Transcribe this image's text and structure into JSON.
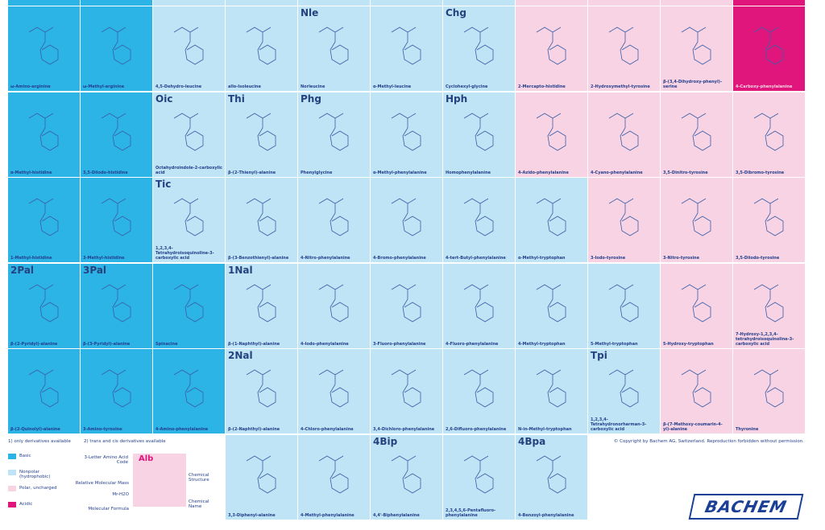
{
  "grid": [
    [
      {
        "name": "ω-Amino-arginine",
        "color": "#2cb4e6"
      },
      {
        "name": "ω-Methyl-arginine",
        "color": "#2cb4e6"
      },
      {
        "name": "4,5-Dehydro-leucine",
        "color": "#bfe4f5"
      },
      {
        "name": "allo-Isoleucine",
        "color": "#bfe4f5"
      },
      {
        "abbr": "Nle",
        "name": "Norleucine",
        "color": "#bfe4f5"
      },
      {
        "name": "α-Methyl-leucine",
        "color": "#bfe4f5"
      },
      {
        "abbr": "Chg",
        "name": "Cyclohexyl-glycine",
        "color": "#bfe4f5"
      },
      {
        "name": "2-Mercapto-histidine",
        "color": "#f8d3e3"
      },
      {
        "name": "2-Hydroxymethyl-tyrosine",
        "color": "#f8d3e3"
      },
      {
        "name": "β-(3,4-Dihydroxy-phenyl)-serine",
        "color": "#f8d3e3"
      },
      {
        "name": "4-Carboxy-phenylalanine",
        "color": "#e0167c"
      }
    ],
    [
      {
        "name": "α-Methyl-histidine",
        "color": "#2cb4e6"
      },
      {
        "name": "3,5-Diiodo-histidine",
        "color": "#2cb4e6"
      },
      {
        "abbr": "Oic",
        "name": "Octahydroindole-2-carboxylic acid",
        "color": "#bfe4f5"
      },
      {
        "abbr": "Thi",
        "name": "β-(2-Thienyl)-alanine",
        "color": "#bfe4f5"
      },
      {
        "abbr": "Phg",
        "name": "Phenylglycine",
        "color": "#bfe4f5"
      },
      {
        "name": "α-Methyl-phenylalanine",
        "color": "#bfe4f5"
      },
      {
        "abbr": "Hph",
        "name": "Homophenylalanine",
        "color": "#bfe4f5"
      },
      {
        "name": "4-Azido-phenylalanine",
        "color": "#f8d3e3"
      },
      {
        "name": "4-Cyano-phenylalanine",
        "color": "#f8d3e3"
      },
      {
        "name": "3,5-Dinitro-tyrosine",
        "color": "#f8d3e3"
      },
      {
        "name": "3,5-Dibromo-tyrosine",
        "color": "#f8d3e3"
      }
    ],
    [
      {
        "name": "1-Methyl-histidine",
        "color": "#2cb4e6"
      },
      {
        "name": "3-Methyl-histidine",
        "color": "#2cb4e6"
      },
      {
        "abbr": "Tic",
        "name": "1,2,3,4-Tetrahydroisoquinoline-3-carboxylic acid",
        "color": "#bfe4f5"
      },
      {
        "name": "β-(3-Benzothienyl)-alanine",
        "color": "#bfe4f5"
      },
      {
        "name": "4-Nitro-phenylalanine",
        "color": "#bfe4f5"
      },
      {
        "name": "4-Bromo-phenylalanine",
        "color": "#bfe4f5"
      },
      {
        "name": "4-tert-Butyl-phenylalanine",
        "color": "#bfe4f5"
      },
      {
        "name": "α-Methyl-tryptophan",
        "color": "#bfe4f5"
      },
      {
        "name": "3-Iodo-tyrosine",
        "color": "#f8d3e3"
      },
      {
        "name": "3-Nitro-tyrosine",
        "color": "#f8d3e3"
      },
      {
        "name": "3,5-Diiodo-tyrosine",
        "color": "#f8d3e3"
      }
    ],
    [
      {
        "abbr": "2Pal",
        "name": "β-(2-Pyridyl)-alanine",
        "color": "#2cb4e6"
      },
      {
        "abbr": "3Pal",
        "name": "β-(3-Pyridyl)-alanine",
        "color": "#2cb4e6"
      },
      {
        "name": "Spinacine",
        "color": "#2cb4e6"
      },
      {
        "abbr": "1Nal",
        "name": "β-(1-Naphthyl)-alanine",
        "color": "#bfe4f5"
      },
      {
        "name": "4-Iodo-phenylalanine",
        "color": "#bfe4f5"
      },
      {
        "name": "3-Fluoro-phenylalanine",
        "color": "#bfe4f5"
      },
      {
        "name": "4-Fluoro-phenylalanine",
        "color": "#bfe4f5"
      },
      {
        "name": "4-Methyl-tryptophan",
        "color": "#bfe4f5"
      },
      {
        "name": "5-Methyl-tryptophan",
        "color": "#bfe4f5"
      },
      {
        "name": "5-Hydroxy-tryptophan",
        "color": "#f8d3e3"
      },
      {
        "name": "7-Hydroxy-1,2,3,4-tetrahydroisoquinoline-3-carboxylic acid",
        "color": "#f8d3e3"
      }
    ],
    [
      {
        "name": "β-(2-Quinolyl)-alanine",
        "color": "#2cb4e6"
      },
      {
        "name": "3-Amino-tyrosine",
        "color": "#2cb4e6"
      },
      {
        "name": "4-Amino-phenylalanine",
        "color": "#2cb4e6"
      },
      {
        "abbr": "2Nal",
        "name": "β-(2-Naphthyl)-alanine",
        "color": "#bfe4f5"
      },
      {
        "name": "4-Chloro-phenylalanine",
        "color": "#bfe4f5"
      },
      {
        "name": "3,4-Dichloro-phenylalanine",
        "color": "#bfe4f5"
      },
      {
        "name": "2,6-Difluoro-phenylalanine",
        "color": "#bfe4f5"
      },
      {
        "name": "N-in-Methyl-tryptophan",
        "color": "#bfe4f5"
      },
      {
        "abbr": "Tpi",
        "name": "1,2,3,4-Tetrahydronorharman-3-carboxylic acid",
        "color": "#bfe4f5"
      },
      {
        "name": "β-(7-Methoxy-coumarin-4-yl)-alanine",
        "color": "#f8d3e3"
      },
      {
        "name": "Thyronine",
        "color": "#f8d3e3"
      }
    ]
  ],
  "bottom_row": [
    {
      "name": "3,3-Diphenyl-alanine",
      "color": "#bfe4f5"
    },
    {
      "name": "4-Methyl-phenylalanine",
      "color": "#bfe4f5"
    },
    {
      "abbr": "4Bip",
      "name": "4,4'-Biphenylalanine",
      "color": "#bfe4f5"
    },
    {
      "name": "2,3,4,5,6-Pentafluoro-phenylalanine",
      "color": "#bfe4f5"
    },
    {
      "abbr": "4Bpa",
      "name": "4-Benzoyl-phenylalanine",
      "color": "#bfe4f5"
    }
  ],
  "notes": [
    "1) only derivatives available",
    "2) trans and cis derivatives available"
  ],
  "legend": [
    {
      "label": "Basic",
      "color": "#2cb4e6"
    },
    {
      "label": "Nonpolar (hydrophobic)",
      "color": "#bfe4f5"
    },
    {
      "label": "Polar, uncharged",
      "color": "#f8d3e3"
    },
    {
      "label": "Acidic",
      "color": "#e0167c"
    }
  ],
  "key": {
    "abbr": "Alb",
    "code": "3-Letter Amino Acid Code",
    "mass": "Relative Molecular Mass",
    "water": "Mr-H2O",
    "formula": "Molecular Formula",
    "structure": "Chemical Structure",
    "name": "Chemical Name"
  },
  "copyright": "© Copyright by Bachem AG, Switzerland. Reproduction forbidden without permission.",
  "logo": "BACHEM"
}
